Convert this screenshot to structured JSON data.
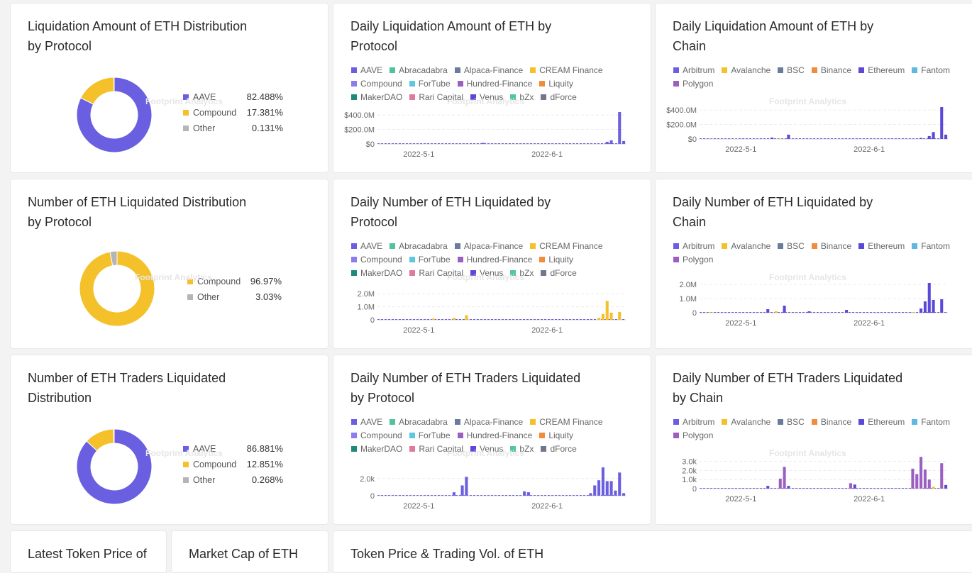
{
  "watermark": "Footprint Analytics",
  "colors": {
    "AAVE": "#6a5fe0",
    "Abracadabra": "#4fc3a0",
    "Alpaca-Finance": "#6b7b9a",
    "CREAM Finance": "#f4c12a",
    "Compound": "#8c7cf0",
    "ForTube": "#5ec7e0",
    "Hundred-Finance": "#9a5fc0",
    "Liquity": "#f08c3c",
    "MakerDAO": "#1d8a7a",
    "Rari Capital": "#e07a9a",
    "Venus": "#5a48d8",
    "bZx": "#52c89a",
    "dForce": "#6f7788",
    "Arbitrum": "#6a5fe0",
    "Avalanche": "#f4c12a",
    "BSC": "#6b7b9a",
    "Binance": "#f08c3c",
    "Ethereum": "#5a48d8",
    "Fantom": "#5eb8e0",
    "Polygon": "#9a5fc0",
    "Other": "#b5b5b5",
    "PieCompound": "#f4c12a"
  },
  "protocol_legend": [
    [
      "AAVE",
      "Abracadabra",
      "Alpaca-Finance",
      "CREAM Finance"
    ],
    [
      "Compound",
      "ForTube",
      "Hundred-Finance",
      "Liquity"
    ],
    [
      "MakerDAO",
      "Rari Capital",
      "Venus",
      "bZx",
      "dForce"
    ]
  ],
  "chain_legend": [
    [
      "Arbitrum",
      "Avalanche",
      "BSC",
      "Binance",
      "Ethereum",
      "Fantom"
    ],
    [
      "Polygon"
    ]
  ],
  "cards": {
    "pie1": {
      "title": "Liquidation Amount of ETH Distribution by Protocol"
    },
    "bar1": {
      "title": "Daily Liquidation Amount of ETH by Protocol"
    },
    "bar2": {
      "title": "Daily Liquidation Amount of ETH by Chain"
    },
    "pie2": {
      "title": "Number of ETH Liquidated Distribution by Protocol"
    },
    "bar3": {
      "title": "Daily Number of ETH Liquidated by Protocol"
    },
    "bar4": {
      "title": "Daily Number of ETH Liquidated by Chain"
    },
    "pie3": {
      "title": "Number of ETH Traders Liquidated Distribution"
    },
    "bar5": {
      "title": "Daily Number of ETH Traders Liquidated by Protocol"
    },
    "bar6": {
      "title": "Daily Number of ETH Traders Liquidated by Chain"
    },
    "b1": {
      "title": "Latest Token Price of"
    },
    "b2": {
      "title": "Market Cap of ETH"
    },
    "b3": {
      "title": "Token Price & Trading Vol. of ETH"
    }
  },
  "chart_data": [
    {
      "id": "pie1",
      "type": "pie",
      "slices": [
        {
          "label": "AAVE",
          "value": 82.488,
          "display": "82.488%",
          "color_key": "AAVE"
        },
        {
          "label": "Compound",
          "value": 17.381,
          "display": "17.381%",
          "color_key": "PieCompound"
        },
        {
          "label": "Other",
          "value": 0.131,
          "display": "0.131%",
          "color_key": "Other"
        }
      ]
    },
    {
      "id": "pie2",
      "type": "pie",
      "slices": [
        {
          "label": "Compound",
          "value": 96.97,
          "display": "96.97%",
          "color_key": "PieCompound"
        },
        {
          "label": "Other",
          "value": 3.03,
          "display": "3.03%",
          "color_key": "Other"
        }
      ]
    },
    {
      "id": "pie3",
      "type": "pie",
      "slices": [
        {
          "label": "AAVE",
          "value": 86.881,
          "display": "86.881%",
          "color_key": "AAVE"
        },
        {
          "label": "Compound",
          "value": 12.851,
          "display": "12.851%",
          "color_key": "PieCompound"
        },
        {
          "label": "Other",
          "value": 0.268,
          "display": "0.268%",
          "color_key": "Other"
        }
      ]
    },
    {
      "id": "bar1",
      "type": "bar",
      "stacked": true,
      "yticks": [
        {
          "v": 0,
          "t": "$0"
        },
        {
          "v": 200,
          "t": "$200.0M"
        },
        {
          "v": 400,
          "t": "$400.0M"
        }
      ],
      "ymax": 450,
      "xticks": [
        {
          "i": 10,
          "t": "2022-5-1"
        },
        {
          "i": 41,
          "t": "2022-6-1"
        }
      ],
      "n": 60,
      "bars": [
        {
          "i": 25,
          "v": 15,
          "k": "AAVE"
        },
        {
          "i": 55,
          "v": 30,
          "k": "AAVE"
        },
        {
          "i": 56,
          "v": 50,
          "k": "AAVE"
        },
        {
          "i": 58,
          "v": 440,
          "k": "AAVE"
        },
        {
          "i": 59,
          "v": 40,
          "k": "AAVE"
        }
      ]
    },
    {
      "id": "bar2",
      "type": "bar",
      "stacked": true,
      "yticks": [
        {
          "v": 0,
          "t": "$0"
        },
        {
          "v": 200,
          "t": "$200.0M"
        },
        {
          "v": 400,
          "t": "$400.0M"
        }
      ],
      "ymax": 450,
      "xticks": [
        {
          "i": 10,
          "t": "2022-5-1"
        },
        {
          "i": 41,
          "t": "2022-6-1"
        }
      ],
      "n": 60,
      "bars": [
        {
          "i": 2,
          "v": 5,
          "k": "Avalanche"
        },
        {
          "i": 8,
          "v": 5,
          "k": "Avalanche"
        },
        {
          "i": 17,
          "v": 20,
          "k": "Ethereum"
        },
        {
          "i": 19,
          "v": 8,
          "k": "Avalanche"
        },
        {
          "i": 21,
          "v": 60,
          "k": "Ethereum"
        },
        {
          "i": 53,
          "v": 15,
          "k": "Ethereum"
        },
        {
          "i": 55,
          "v": 40,
          "k": "Ethereum"
        },
        {
          "i": 56,
          "v": 95,
          "k": "Ethereum"
        },
        {
          "i": 58,
          "v": 440,
          "k": "Ethereum"
        },
        {
          "i": 59,
          "v": 60,
          "k": "Ethereum"
        }
      ]
    },
    {
      "id": "bar3",
      "type": "bar",
      "stacked": true,
      "yticks": [
        {
          "v": 0,
          "t": "0"
        },
        {
          "v": 1.0,
          "t": "1.0M"
        },
        {
          "v": 2.0,
          "t": "2.0M"
        }
      ],
      "ymax": 2.5,
      "xticks": [
        {
          "i": 10,
          "t": "2022-5-1"
        },
        {
          "i": 41,
          "t": "2022-6-1"
        }
      ],
      "n": 60,
      "bars": [
        {
          "i": 13,
          "v": 0.1,
          "k": "CREAM Finance"
        },
        {
          "i": 18,
          "v": 0.15,
          "k": "CREAM Finance"
        },
        {
          "i": 21,
          "v": 0.35,
          "k": "CREAM Finance"
        },
        {
          "i": 53,
          "v": 0.15,
          "k": "CREAM Finance"
        },
        {
          "i": 54,
          "v": 0.45,
          "k": "CREAM Finance"
        },
        {
          "i": 55,
          "v": 1.45,
          "k": "CREAM Finance"
        },
        {
          "i": 56,
          "v": 0.55,
          "k": "CREAM Finance"
        },
        {
          "i": 58,
          "v": 0.6,
          "k": "CREAM Finance"
        }
      ]
    },
    {
      "id": "bar4",
      "type": "bar",
      "stacked": true,
      "yticks": [
        {
          "v": 0,
          "t": "0"
        },
        {
          "v": 1.0,
          "t": "1.0M"
        },
        {
          "v": 2.0,
          "t": "2.0M"
        }
      ],
      "ymax": 2.3,
      "xticks": [
        {
          "i": 10,
          "t": "2022-5-1"
        },
        {
          "i": 41,
          "t": "2022-6-1"
        }
      ],
      "n": 60,
      "bars": [
        {
          "i": 2,
          "v": 0.05,
          "k": "Avalanche"
        },
        {
          "i": 16,
          "v": 0.25,
          "k": "Ethereum"
        },
        {
          "i": 18,
          "v": 0.1,
          "k": "Avalanche"
        },
        {
          "i": 20,
          "v": 0.5,
          "k": "Ethereum"
        },
        {
          "i": 26,
          "v": 0.1,
          "k": "Ethereum"
        },
        {
          "i": 35,
          "v": 0.2,
          "k": "Ethereum"
        },
        {
          "i": 51,
          "v": 0.05,
          "k": "Avalanche"
        },
        {
          "i": 53,
          "v": 0.3,
          "k": "Ethereum"
        },
        {
          "i": 54,
          "v": 0.8,
          "k": "Ethereum"
        },
        {
          "i": 55,
          "v": 2.1,
          "k": "Ethereum"
        },
        {
          "i": 56,
          "v": 0.9,
          "k": "Ethereum"
        },
        {
          "i": 58,
          "v": 0.95,
          "k": "Ethereum"
        }
      ]
    },
    {
      "id": "bar5",
      "type": "bar",
      "stacked": true,
      "yticks": [
        {
          "v": 0,
          "t": "0"
        },
        {
          "v": 2000,
          "t": "2.0k"
        }
      ],
      "ymax": 3800,
      "xticks": [
        {
          "i": 10,
          "t": "2022-5-1"
        },
        {
          "i": 41,
          "t": "2022-6-1"
        }
      ],
      "n": 60,
      "bars": [
        {
          "i": 18,
          "v": 400,
          "k": "AAVE"
        },
        {
          "i": 20,
          "v": 1200,
          "k": "AAVE"
        },
        {
          "i": 21,
          "v": 2200,
          "k": "AAVE"
        },
        {
          "i": 35,
          "v": 500,
          "k": "AAVE"
        },
        {
          "i": 36,
          "v": 400,
          "k": "AAVE"
        },
        {
          "i": 51,
          "v": 300,
          "k": "AAVE"
        },
        {
          "i": 52,
          "v": 1200,
          "k": "AAVE"
        },
        {
          "i": 53,
          "v": 1800,
          "k": "AAVE"
        },
        {
          "i": 54,
          "v": 3300,
          "k": "AAVE"
        },
        {
          "i": 55,
          "v": 1700,
          "k": "AAVE"
        },
        {
          "i": 56,
          "v": 1700,
          "k": "AAVE"
        },
        {
          "i": 57,
          "v": 600,
          "k": "AAVE"
        },
        {
          "i": 58,
          "v": 2700,
          "k": "AAVE"
        },
        {
          "i": 59,
          "v": 300,
          "k": "AAVE"
        }
      ]
    },
    {
      "id": "bar6",
      "type": "bar",
      "stacked": true,
      "yticks": [
        {
          "v": 0,
          "t": "0"
        },
        {
          "v": 1000,
          "t": "1.0k"
        },
        {
          "v": 2000,
          "t": "2.0k"
        },
        {
          "v": 3000,
          "t": "3.0k"
        }
      ],
      "ymax": 3600,
      "xticks": [
        {
          "i": 10,
          "t": "2022-5-1"
        },
        {
          "i": 41,
          "t": "2022-6-1"
        }
      ],
      "n": 60,
      "bars": [
        {
          "i": 16,
          "v": 300,
          "k": "Ethereum"
        },
        {
          "i": 19,
          "v": 1100,
          "k": "Polygon"
        },
        {
          "i": 20,
          "v": 2400,
          "k": "Polygon"
        },
        {
          "i": 21,
          "v": 300,
          "k": "Ethereum"
        },
        {
          "i": 36,
          "v": 600,
          "k": "Polygon"
        },
        {
          "i": 37,
          "v": 450,
          "k": "Ethereum"
        },
        {
          "i": 51,
          "v": 2200,
          "k": "Polygon"
        },
        {
          "i": 52,
          "v": 1600,
          "k": "Polygon"
        },
        {
          "i": 53,
          "v": 3500,
          "k": "Polygon"
        },
        {
          "i": 54,
          "v": 2100,
          "k": "Polygon"
        },
        {
          "i": 55,
          "v": 1000,
          "k": "Polygon"
        },
        {
          "i": 56,
          "v": 200,
          "k": "Avalanche"
        },
        {
          "i": 58,
          "v": 2800,
          "k": "Polygon"
        },
        {
          "i": 59,
          "v": 400,
          "k": "Ethereum"
        }
      ]
    }
  ]
}
